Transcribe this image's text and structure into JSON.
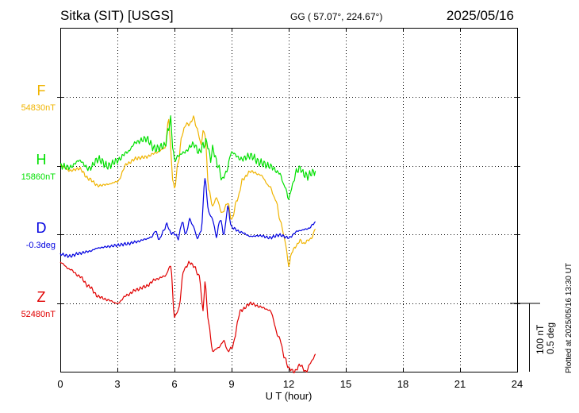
{
  "header": {
    "station": "Sitka (SIT)  [USGS]",
    "coords": "GG ( 57.07°, 224.67°)",
    "date": "2025/05/16"
  },
  "footer": {
    "plotted": "Plotted at 2025/05/16 13:30 UT",
    "scale_nt": "100 nT",
    "scale_deg": "0.5 deg"
  },
  "chart_data": {
    "type": "line",
    "xlabel": "U T (hour)",
    "xlim": [
      0,
      24
    ],
    "xticks": [
      "0",
      "3",
      "6",
      "9",
      "12",
      "15",
      "18",
      "21",
      "24"
    ],
    "grid": true,
    "series": [
      {
        "name": "F",
        "baseline": "54830nT",
        "color": "#f0b400",
        "x": [
          0,
          0.5,
          1.0,
          1.5,
          2.0,
          2.5,
          3.0,
          3.5,
          4.0,
          4.5,
          5.0,
          5.5,
          5.7,
          5.8,
          5.9,
          6.0,
          6.2,
          6.4,
          6.6,
          6.8,
          7.0,
          7.2,
          7.4,
          7.5,
          7.6,
          7.8,
          8.0,
          8.2,
          8.5,
          8.8,
          9.0,
          9.3,
          9.6,
          10.0,
          10.5,
          11.0,
          11.3,
          11.6,
          11.8,
          12.0,
          12.2,
          12.4,
          12.6,
          12.8,
          13.0,
          13.2,
          13.4
        ],
        "y": [
          -100,
          -108,
          -105,
          -120,
          -130,
          -128,
          -124,
          -98,
          -90,
          -88,
          -82,
          -75,
          -32,
          -75,
          -120,
          -134,
          -95,
          -55,
          -40,
          -40,
          -30,
          -48,
          -70,
          -50,
          -55,
          -135,
          -160,
          -148,
          -170,
          -155,
          -180,
          -150,
          -120,
          -109,
          -114,
          -131,
          -150,
          -185,
          -210,
          -246,
          -225,
          -218,
          -210,
          -215,
          -210,
          -207,
          -193
        ]
      },
      {
        "name": "H",
        "baseline": "15860nT",
        "color": "#00e000",
        "x": [
          0,
          0.5,
          1.0,
          1.5,
          2.0,
          2.5,
          3.0,
          3.5,
          4.0,
          4.5,
          5.0,
          5.5,
          5.7,
          5.8,
          5.9,
          6.0,
          6.2,
          6.5,
          7.0,
          7.3,
          7.5,
          7.7,
          7.9,
          8.0,
          8.3,
          8.5,
          8.7,
          9.0,
          9.5,
          10.0,
          10.5,
          11.0,
          11.5,
          11.8,
          12.0,
          12.2,
          12.4,
          12.6,
          12.8,
          13.0,
          13.2,
          13.4
        ],
        "y": [
          0,
          -2,
          8,
          -4,
          10,
          0,
          8,
          20,
          35,
          40,
          25,
          30,
          55,
          70,
          30,
          8,
          15,
          20,
          32,
          20,
          30,
          35,
          10,
          25,
          0,
          -20,
          -10,
          20,
          10,
          15,
          5,
          0,
          -10,
          -30,
          -48,
          -28,
          -8,
          -3,
          -12,
          -15,
          -10,
          -8
        ]
      },
      {
        "name": "D",
        "baseline": "-0.3deg",
        "color": "#0000e0",
        "x": [
          0,
          0.5,
          1.0,
          1.5,
          2.0,
          2.5,
          3.0,
          3.5,
          4.0,
          4.5,
          4.8,
          5.0,
          5.2,
          5.4,
          5.6,
          5.8,
          6.0,
          6.2,
          6.4,
          6.6,
          6.8,
          7.0,
          7.2,
          7.4,
          7.6,
          7.8,
          8.0,
          8.2,
          8.4,
          8.6,
          8.8,
          9.0,
          9.5,
          10.0,
          10.5,
          11.0,
          11.5,
          12.0,
          12.5,
          13.0,
          13.4
        ],
        "y": [
          -0.145,
          -0.16,
          -0.14,
          -0.125,
          -0.1,
          -0.09,
          -0.08,
          -0.07,
          -0.055,
          -0.035,
          -0.02,
          0.025,
          -0.04,
          0.02,
          0.075,
          0.01,
          0.005,
          -0.03,
          0.09,
          0.0,
          0.11,
          0.055,
          -0.03,
          0.025,
          0.405,
          0.16,
          0.11,
          -0.015,
          0.11,
          0.0,
          0.2,
          0.05,
          0.015,
          -0.015,
          -0.01,
          -0.025,
          -0.005,
          -0.025,
          0.025,
          0.04,
          0.085
        ]
      },
      {
        "name": "Z",
        "baseline": "52480nT",
        "color": "#e00000",
        "x": [
          0,
          0.5,
          1.0,
          1.5,
          2.0,
          2.5,
          3.0,
          3.5,
          4.0,
          4.5,
          5.0,
          5.5,
          5.8,
          6.0,
          6.2,
          6.5,
          6.8,
          7.0,
          7.3,
          7.5,
          7.6,
          7.8,
          8.0,
          8.3,
          8.6,
          8.8,
          9.0,
          9.5,
          10.0,
          10.5,
          11.0,
          11.5,
          11.8,
          12.0,
          12.3,
          12.6,
          12.9,
          13.2,
          13.4
        ],
        "y": [
          60,
          50,
          40,
          25,
          10,
          5,
          0,
          12,
          20,
          25,
          35,
          40,
          55,
          -20,
          -10,
          50,
          60,
          55,
          40,
          -10,
          30,
          -30,
          -70,
          -65,
          -55,
          -70,
          -65,
          -10,
          0,
          -5,
          -10,
          -50,
          -80,
          -95,
          -100,
          -90,
          -100,
          -85,
          -75
        ]
      }
    ]
  }
}
